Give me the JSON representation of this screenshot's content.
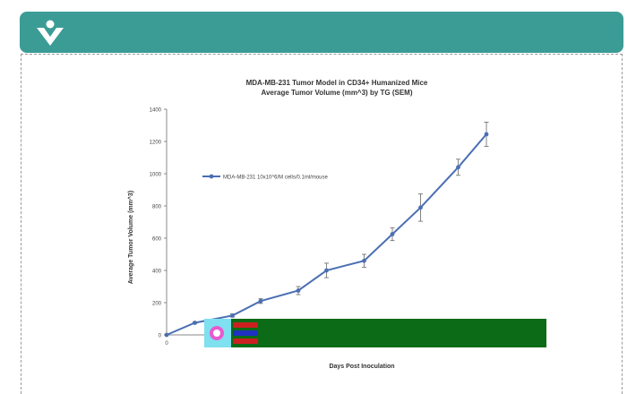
{
  "colors": {
    "header_bg": "#3b9c96",
    "logo": "#ffffff",
    "series": "#4a6fb3",
    "overlay_green": "#0b6b16"
  },
  "header": {
    "logo_icon": "heart-person-logo-icon"
  },
  "chart_data": {
    "type": "line",
    "title_line1": "MDA-MB-231 Tumor Model in CD34+ Humanized Mice",
    "title_line2": "Average Tumor Volume (mm^3) by TG (SEM)",
    "xlabel": "Days Post Inoculation",
    "ylabel": "Average Tumor Volume (mm^3)",
    "ylim": [
      0,
      1400
    ],
    "xlim": [
      0,
      40
    ],
    "yticks": [
      0,
      200,
      400,
      600,
      800,
      1000,
      1200,
      1400
    ],
    "xticks_visible": [
      "0"
    ],
    "grid": false,
    "legend_position": "top-left",
    "series": [
      {
        "name": "MDA-MB-231 10x10^6/M cells/0.1ml/mouse",
        "x": [
          0,
          3,
          7,
          10,
          14,
          17,
          21,
          24,
          27,
          31,
          34,
          37
        ],
        "y": [
          0,
          75,
          120,
          210,
          275,
          400,
          460,
          625,
          790,
          1040,
          1245,
          1245
        ],
        "err": [
          0,
          5,
          10,
          15,
          25,
          45,
          40,
          40,
          85,
          50,
          75,
          75
        ]
      }
    ]
  }
}
